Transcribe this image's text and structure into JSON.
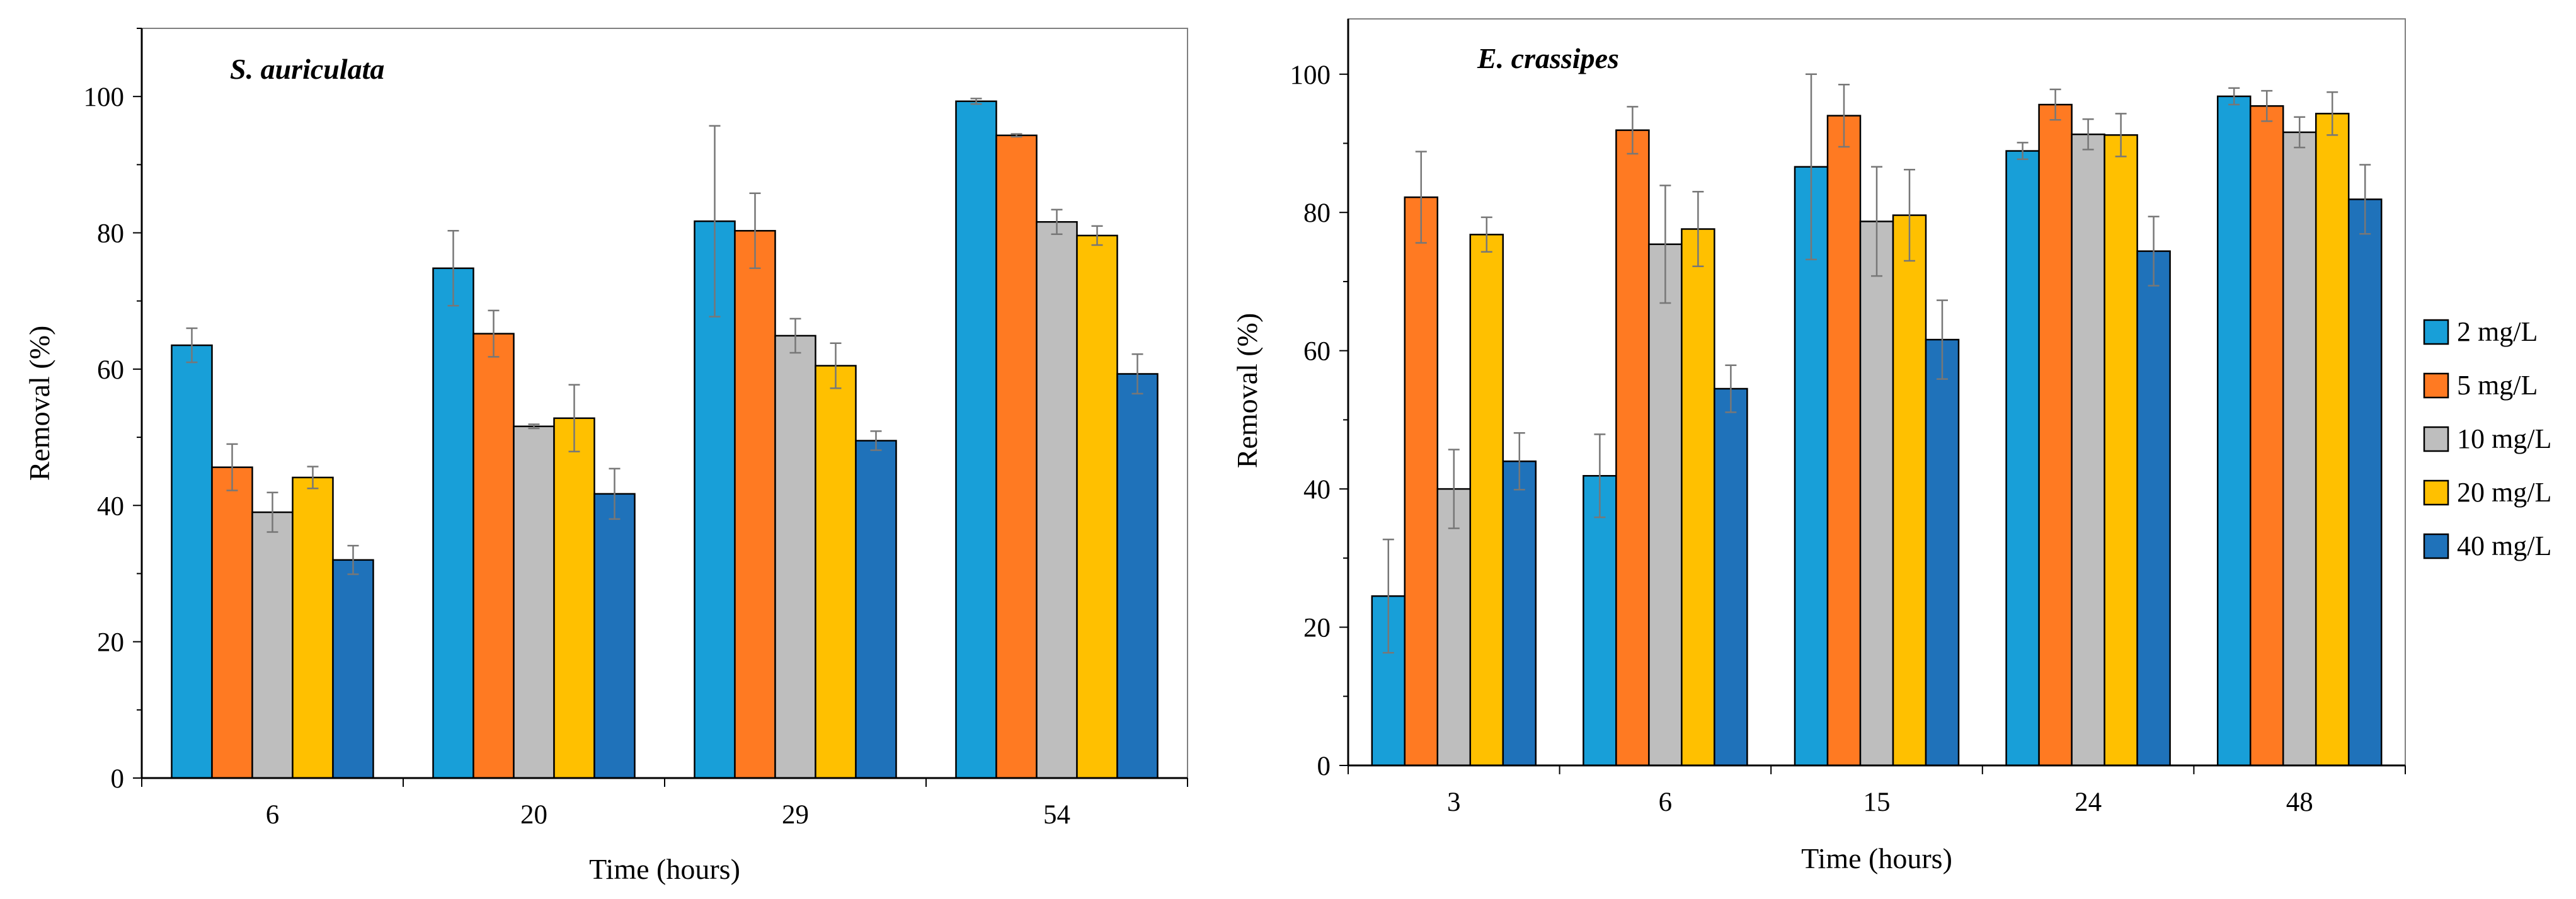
{
  "chart_data": [
    {
      "type": "bar",
      "title": "S. auriculata",
      "xlabel": "Time (hours)",
      "ylabel": "Removal (%)",
      "ylim": [
        0,
        110
      ],
      "yticks": [
        0,
        20,
        40,
        60,
        80,
        100
      ],
      "categories": [
        "6",
        "20",
        "29",
        "54"
      ],
      "series": [
        {
          "name": "2 mg/L",
          "values": [
            63.5,
            74.8,
            81.7,
            99.3
          ],
          "errors": [
            2.5,
            5.5,
            14.0,
            0.4
          ]
        },
        {
          "name": "5 mg/L",
          "values": [
            45.6,
            65.2,
            80.3,
            94.3
          ],
          "errors": [
            3.4,
            3.4,
            5.5,
            0.2
          ]
        },
        {
          "name": "10 mg/L",
          "values": [
            39.0,
            51.6,
            64.9,
            81.6
          ],
          "errors": [
            2.9,
            0.3,
            2.5,
            1.8
          ]
        },
        {
          "name": "20 mg/L",
          "values": [
            44.1,
            52.8,
            60.5,
            79.6
          ],
          "errors": [
            1.6,
            4.9,
            3.3,
            1.4
          ]
        },
        {
          "name": "40 mg/L",
          "values": [
            32.0,
            41.7,
            49.5,
            59.3
          ],
          "errors": [
            2.1,
            3.7,
            1.4,
            2.9
          ]
        }
      ]
    },
    {
      "type": "bar",
      "title": "E. crassipes",
      "xlabel": "Time (hours)",
      "ylabel": "Removal (%)",
      "ylim": [
        0,
        108
      ],
      "yticks": [
        0,
        20,
        40,
        60,
        80,
        100
      ],
      "categories": [
        "3",
        "6",
        "15",
        "24",
        "48"
      ],
      "series": [
        {
          "name": "2 mg/L",
          "values": [
            24.5,
            41.9,
            86.6,
            88.9,
            96.8
          ],
          "errors": [
            8.2,
            6.0,
            13.4,
            1.2,
            1.2
          ]
        },
        {
          "name": "5 mg/L",
          "values": [
            82.2,
            91.9,
            94.0,
            95.6,
            95.4
          ],
          "errors": [
            6.6,
            3.4,
            4.5,
            2.2,
            2.2
          ]
        },
        {
          "name": "10 mg/L",
          "values": [
            40.0,
            75.4,
            78.7,
            91.3,
            91.6
          ],
          "errors": [
            5.7,
            8.5,
            7.9,
            2.2,
            2.2
          ]
        },
        {
          "name": "20 mg/L",
          "values": [
            76.8,
            77.6,
            79.6,
            91.2,
            94.3
          ],
          "errors": [
            2.5,
            5.4,
            6.6,
            3.1,
            3.1
          ]
        },
        {
          "name": "40 mg/L",
          "values": [
            44.0,
            54.5,
            61.6,
            74.4,
            81.9
          ],
          "errors": [
            4.1,
            3.4,
            5.7,
            5.0,
            5.0
          ]
        }
      ]
    }
  ],
  "legend": {
    "placement": "right",
    "items": [
      {
        "label": "2 mg/L",
        "color": "#189fd8"
      },
      {
        "label": "5 mg/L",
        "color": "#ff7a22"
      },
      {
        "label": "10 mg/L",
        "color": "#bebebe"
      },
      {
        "label": "20 mg/L",
        "color": "#ffc000"
      },
      {
        "label": "40 mg/L",
        "color": "#1f72ba"
      }
    ]
  },
  "colors": {
    "plot_border": "#7f7f7f",
    "error_bar": "#777777"
  }
}
